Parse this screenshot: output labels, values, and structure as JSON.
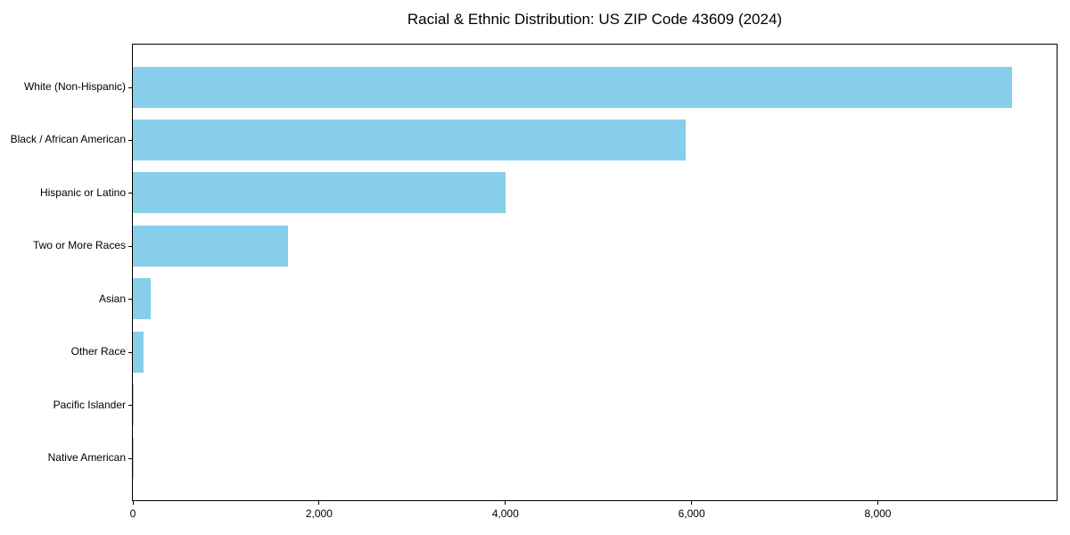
{
  "chart_data": {
    "type": "bar",
    "orientation": "horizontal",
    "title": "Racial & Ethnic Distribution: US ZIP Code 43609 (2024)",
    "xlabel": "",
    "ylabel": "",
    "categories": [
      "White (Non-Hispanic)",
      "Black / African American",
      "Hispanic or Latino",
      "Two or More Races",
      "Asian",
      "Other Race",
      "Pacific Islander",
      "Native American"
    ],
    "values": [
      9445,
      5940,
      4000,
      1665,
      195,
      115,
      8,
      4
    ],
    "xlim": [
      0,
      9920
    ],
    "x_ticks": [
      0,
      2000,
      4000,
      6000,
      8000
    ],
    "x_tick_labels": [
      "0",
      "2,000",
      "4,000",
      "6,000",
      "8,000"
    ],
    "grid": false,
    "legend": null,
    "bar_color": "#87CEEB",
    "axis_color": "#000000",
    "background_color": "#FFFFFF"
  }
}
